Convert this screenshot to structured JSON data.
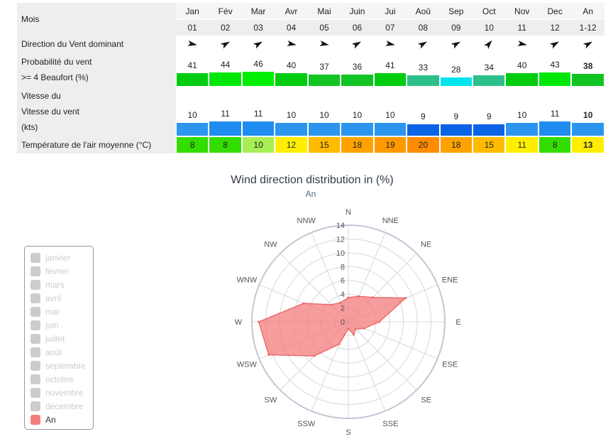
{
  "table": {
    "row_labels": {
      "months": "Mois",
      "direction": "Direction du Vent dominant",
      "prob_line1": "Probabilité du vent",
      "prob_line2": ">= 4 Beaufort (%)",
      "speed_line1": "Vitesse du",
      "speed_line2": "Vitesse du vent",
      "speed_line3": "(kts)",
      "temp": "Température de l'air moyenne (°C)"
    },
    "months": [
      {
        "name": "Jan",
        "num": "01",
        "dir_deg": 100,
        "prob": 41,
        "speed": 10,
        "temp": 8,
        "prob_color": "#00cc11",
        "speed_color": "#2b95f0",
        "temp_color": "#33dd00"
      },
      {
        "name": "Fév",
        "num": "02",
        "dir_deg": 60,
        "prob": 44,
        "speed": 11,
        "temp": 8,
        "prob_color": "#00e80a",
        "speed_color": "#1e8cf0",
        "temp_color": "#33dd00"
      },
      {
        "name": "Mar",
        "num": "03",
        "dir_deg": 60,
        "prob": 46,
        "speed": 11,
        "temp": 10,
        "prob_color": "#00f005",
        "speed_color": "#1e8cf0",
        "temp_color": "#a8ee55"
      },
      {
        "name": "Avr",
        "num": "04",
        "dir_deg": 100,
        "prob": 40,
        "speed": 10,
        "temp": 12,
        "prob_color": "#00cc11",
        "speed_color": "#2b95f0",
        "temp_color": "#ffee00"
      },
      {
        "name": "Mai",
        "num": "05",
        "dir_deg": 100,
        "prob": 37,
        "speed": 10,
        "temp": 15,
        "prob_color": "#11c422",
        "speed_color": "#2b95f0",
        "temp_color": "#ffbb00"
      },
      {
        "name": "Juin",
        "num": "06",
        "dir_deg": 60,
        "prob": 36,
        "speed": 10,
        "temp": 18,
        "prob_color": "#11c422",
        "speed_color": "#2b95f0",
        "temp_color": "#ffa200"
      },
      {
        "name": "Jui",
        "num": "07",
        "dir_deg": 100,
        "prob": 41,
        "speed": 10,
        "temp": 19,
        "prob_color": "#00cc11",
        "speed_color": "#2b95f0",
        "temp_color": "#ff9900"
      },
      {
        "name": "Aoû",
        "num": "08",
        "dir_deg": 60,
        "prob": 33,
        "speed": 9,
        "temp": 20,
        "prob_color": "#2ec08a",
        "speed_color": "#0b64e6",
        "temp_color": "#ff8c00"
      },
      {
        "name": "Sep",
        "num": "09",
        "dir_deg": 60,
        "prob": 28,
        "speed": 9,
        "temp": 18,
        "prob_color": "#00e4ee",
        "speed_color": "#0b64e6",
        "temp_color": "#ffa200"
      },
      {
        "name": "Oct",
        "num": "10",
        "dir_deg": 40,
        "prob": 34,
        "speed": 9,
        "temp": 15,
        "prob_color": "#2ec08a",
        "speed_color": "#0b64e6",
        "temp_color": "#ffbb00"
      },
      {
        "name": "Nov",
        "num": "11",
        "dir_deg": 100,
        "prob": 40,
        "speed": 10,
        "temp": 11,
        "prob_color": "#00cc11",
        "speed_color": "#2b95f0",
        "temp_color": "#ffee00"
      },
      {
        "name": "Dec",
        "num": "12",
        "dir_deg": 60,
        "prob": 43,
        "speed": 11,
        "temp": 8,
        "prob_color": "#00e80a",
        "speed_color": "#1e8cf0",
        "temp_color": "#33dd00"
      },
      {
        "name": "An",
        "num": "1-12",
        "dir_deg": 60,
        "prob": 38,
        "speed": 10,
        "temp": 13,
        "prob_color": "#11c422",
        "speed_color": "#2b95f0",
        "temp_color": "#ffee00"
      }
    ]
  },
  "chart_data": {
    "type": "radar",
    "title": "Wind direction distribution in (%)",
    "subtitle": "An",
    "categories": [
      "N",
      "NNE",
      "NE",
      "ENE",
      "E",
      "ESE",
      "SE",
      "SSE",
      "S",
      "SSW",
      "SW",
      "WSW",
      "W",
      "WNW",
      "NW",
      "NNW"
    ],
    "radial_ticks": [
      0,
      2,
      4,
      6,
      8,
      10,
      12,
      14
    ],
    "rmax": 14,
    "series": [
      {
        "name": "An",
        "color": "#f47c7c",
        "values": [
          3.5,
          4.0,
          5.0,
          9.0,
          4.5,
          2.5,
          1.5,
          2.0,
          1.0,
          3.5,
          7.0,
          12.5,
          13.0,
          7.0,
          3.5,
          3.0
        ]
      }
    ]
  },
  "legend": {
    "items": [
      {
        "label": "janvier",
        "active": false
      },
      {
        "label": "février",
        "active": false
      },
      {
        "label": "mars",
        "active": false
      },
      {
        "label": "avril",
        "active": false
      },
      {
        "label": "mai",
        "active": false
      },
      {
        "label": "juin",
        "active": false
      },
      {
        "label": "juillet",
        "active": false
      },
      {
        "label": "août",
        "active": false
      },
      {
        "label": "septembre",
        "active": false
      },
      {
        "label": "octobre",
        "active": false
      },
      {
        "label": "novembre",
        "active": false
      },
      {
        "label": "décembre",
        "active": false
      },
      {
        "label": "An",
        "active": true
      }
    ]
  }
}
